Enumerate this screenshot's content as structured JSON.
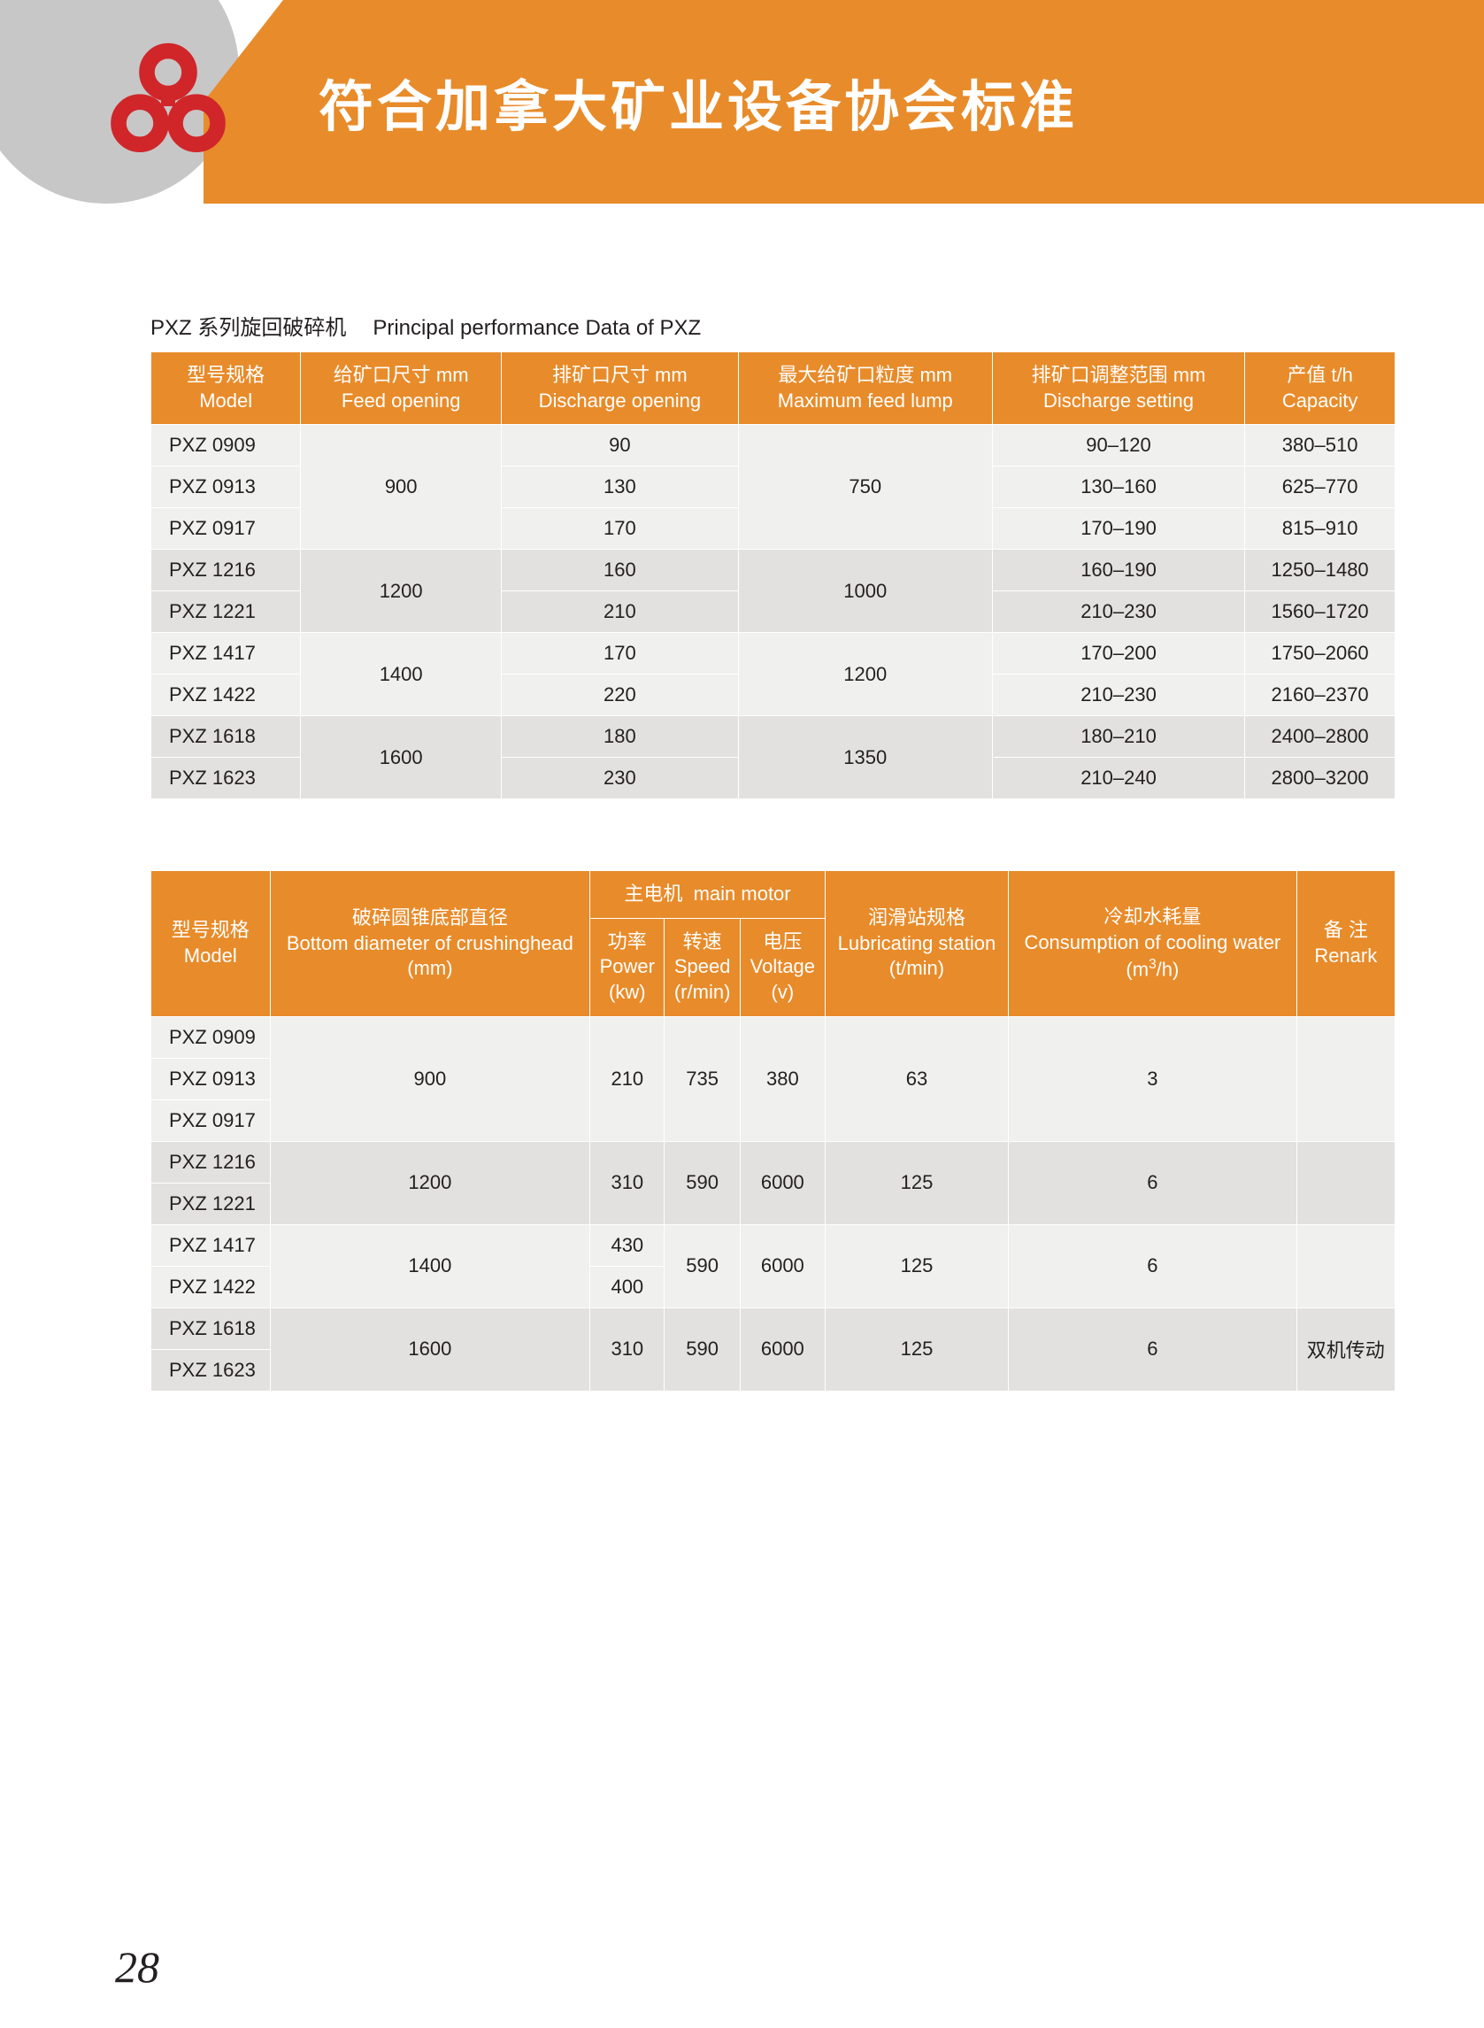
{
  "header": {
    "title": "符合加拿大矿业设备协会标准",
    "banner_bg": "#e88b2a",
    "circle_bg": "#c8c7c7",
    "logo_color": "#d0262a"
  },
  "page_number": "28",
  "table1": {
    "caption_cn": "PXZ 系列旋回破碎机",
    "caption_en": "Principal performance Data of PXZ",
    "columns": [
      {
        "cn": "型号规格",
        "en": "Model"
      },
      {
        "cn": "给矿口尺寸 mm",
        "en": "Feed opening"
      },
      {
        "cn": "排矿口尺寸 mm",
        "en": "Discharge opening"
      },
      {
        "cn": "最大给矿口粒度 mm",
        "en": "Maximum feed lump"
      },
      {
        "cn": "排矿口调整范围 mm",
        "en": "Discharge setting"
      },
      {
        "cn": "产值 t/h",
        "en": "Capacity"
      }
    ],
    "groups": [
      {
        "band": "a",
        "feed": "900",
        "lump": "750",
        "rows": [
          {
            "model": "PXZ 0909",
            "discharge": "90",
            "setting": "90–120",
            "capacity": "380–510"
          },
          {
            "model": "PXZ 0913",
            "discharge": "130",
            "setting": "130–160",
            "capacity": "625–770"
          },
          {
            "model": "PXZ 0917",
            "discharge": "170",
            "setting": "170–190",
            "capacity": "815–910"
          }
        ]
      },
      {
        "band": "b",
        "feed": "1200",
        "lump": "1000",
        "rows": [
          {
            "model": "PXZ 1216",
            "discharge": "160",
            "setting": "160–190",
            "capacity": "1250–1480"
          },
          {
            "model": "PXZ 1221",
            "discharge": "210",
            "setting": "210–230",
            "capacity": "1560–1720"
          }
        ]
      },
      {
        "band": "a",
        "feed": "1400",
        "lump": "1200",
        "rows": [
          {
            "model": "PXZ 1417",
            "discharge": "170",
            "setting": "170–200",
            "capacity": "1750–2060"
          },
          {
            "model": "PXZ 1422",
            "discharge": "220",
            "setting": "210–230",
            "capacity": "2160–2370"
          }
        ]
      },
      {
        "band": "b",
        "feed": "1600",
        "lump": "1350",
        "rows": [
          {
            "model": "PXZ 1618",
            "discharge": "180",
            "setting": "180–210",
            "capacity": "2400–2800"
          },
          {
            "model": "PXZ 1623",
            "discharge": "230",
            "setting": "210–240",
            "capacity": "2800–3200"
          }
        ]
      }
    ]
  },
  "table2": {
    "header_top": {
      "bottom_dia": {
        "cn": "破碎圆锥底部直径",
        "en": "Bottom diameter of crushinghead",
        "unit": "(mm)"
      },
      "motor": {
        "cn": "主电机",
        "en": "main motor"
      },
      "lube": {
        "cn": "润滑站规格",
        "en": "Lubricating station",
        "unit": "(t/min)"
      },
      "cooling": {
        "cn": "冷却水耗量",
        "en": "Consumption of cooling water",
        "unit": "(m³/h)"
      },
      "remark": {
        "cn": "备 注",
        "en": "Renark"
      }
    },
    "motor_sub": {
      "power": {
        "cn": "功率",
        "en": "Power",
        "unit": "(kw)"
      },
      "speed": {
        "cn": "转速",
        "en": "Speed",
        "unit": "(r/min)"
      },
      "voltage": {
        "cn": "电压",
        "en": "Voltage",
        "unit": "(v)"
      }
    },
    "model_col": {
      "cn": "型号规格",
      "en": "Model"
    },
    "groups": [
      {
        "band": "a",
        "dia": "900",
        "power": "210",
        "speed": "735",
        "voltage": "380",
        "lube": "63",
        "cool": "3",
        "remark": "",
        "rows": [
          {
            "model": "PXZ 0909"
          },
          {
            "model": "PXZ 0913"
          },
          {
            "model": "PXZ 0917"
          }
        ]
      },
      {
        "band": "b",
        "dia": "1200",
        "power": "310",
        "speed": "590",
        "voltage": "6000",
        "lube": "125",
        "cool": "6",
        "remark": "",
        "rows": [
          {
            "model": "PXZ 1216"
          },
          {
            "model": "PXZ 1221"
          }
        ]
      },
      {
        "band": "a",
        "dia": "1400",
        "power_rows": [
          "430",
          "400"
        ],
        "speed": "590",
        "voltage": "6000",
        "lube": "125",
        "cool": "6",
        "remark": "",
        "rows": [
          {
            "model": "PXZ 1417"
          },
          {
            "model": "PXZ 1422"
          }
        ]
      },
      {
        "band": "b",
        "dia": "1600",
        "power": "310",
        "speed": "590",
        "voltage": "6000",
        "lube": "125",
        "cool": "6",
        "remark": "双机传动",
        "rows": [
          {
            "model": "PXZ 1618"
          },
          {
            "model": "PXZ 1623"
          }
        ]
      }
    ]
  }
}
